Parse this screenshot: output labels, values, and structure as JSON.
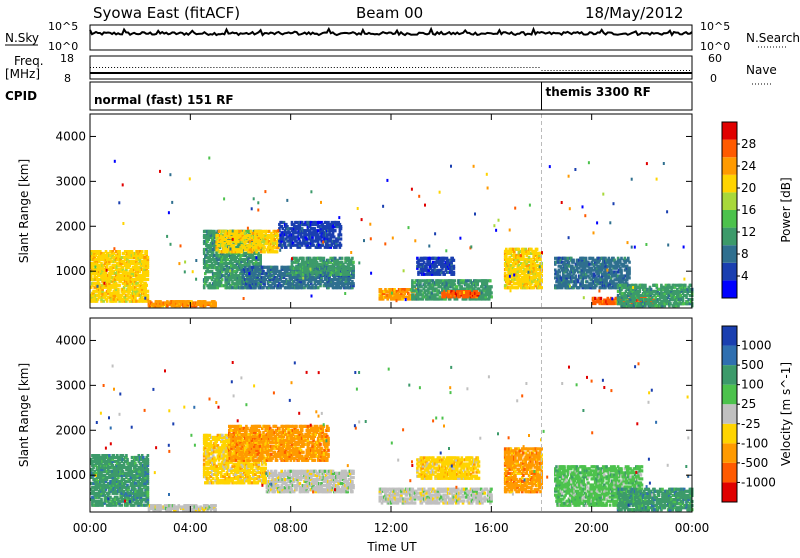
{
  "header": {
    "title": "Syowa East (fitACF)",
    "beam": "Beam 00",
    "date": "18/May/2012"
  },
  "noise_panel": {
    "left_label": "N.Sky",
    "right_label": "N.Search",
    "tick_top": "10^5",
    "tick_bottom": "10^0"
  },
  "freq_panel": {
    "left_label_line1": "Freq.",
    "left_label_line2": "[MHz]",
    "left_tick_top": "18",
    "left_tick_bottom": "8",
    "right_label": "Nave",
    "right_tick_top": "60",
    "right_tick_bottom": "0"
  },
  "cpid_panel": {
    "label": "CPID",
    "mode1": "normal (fast) 151 RF",
    "mode2": "themis 3300 RF",
    "mode2_start_hour": 18.0
  },
  "chart_data": [
    {
      "type": "heatmap",
      "name": "power-panel",
      "ylabel": "Slant Range [km]",
      "xlabel": "",
      "xlim": [
        0,
        24
      ],
      "ylim": [
        180,
        4500
      ],
      "yticks": [
        1000,
        2000,
        3000,
        4000
      ],
      "colorbar": {
        "label": "Power [dB]",
        "ticks": [
          4,
          8,
          12,
          16,
          20,
          24,
          28
        ],
        "range": [
          0,
          32
        ],
        "colors": [
          "#0000ff",
          "#1a3fb0",
          "#2f6f8f",
          "#3c9a6a",
          "#4cc24c",
          "#a8d83a",
          "#ffd400",
          "#ff9a00",
          "#ff5a00",
          "#e00000"
        ]
      },
      "echo_regions": [
        {
          "t": [
            0.0,
            2.3
          ],
          "r": [
            300,
            1450
          ],
          "value": 20
        },
        {
          "t": [
            2.3,
            5.0
          ],
          "r": [
            200,
            320
          ],
          "value": 24
        },
        {
          "t": [
            4.5,
            6.8
          ],
          "r": [
            600,
            1900
          ],
          "value": 12
        },
        {
          "t": [
            5.0,
            7.5
          ],
          "r": [
            1400,
            1900
          ],
          "value": 20
        },
        {
          "t": [
            6.0,
            10.5
          ],
          "r": [
            600,
            1100
          ],
          "value": 8
        },
        {
          "t": [
            7.5,
            10.0
          ],
          "r": [
            1500,
            2100
          ],
          "value": 6
        },
        {
          "t": [
            8.0,
            10.5
          ],
          "r": [
            900,
            1300
          ],
          "value": 10
        },
        {
          "t": [
            11.5,
            13.0
          ],
          "r": [
            350,
            600
          ],
          "value": 24
        },
        {
          "t": [
            12.8,
            16.0
          ],
          "r": [
            350,
            800
          ],
          "value": 12
        },
        {
          "t": [
            14.0,
            15.5
          ],
          "r": [
            400,
            550
          ],
          "value": 26
        },
        {
          "t": [
            13.0,
            14.5
          ],
          "r": [
            900,
            1300
          ],
          "value": 6
        },
        {
          "t": [
            16.5,
            18.0
          ],
          "r": [
            600,
            1500
          ],
          "value": 22
        },
        {
          "t": [
            18.5,
            21.5
          ],
          "r": [
            600,
            1300
          ],
          "value": 8
        },
        {
          "t": [
            20.0,
            22.5
          ],
          "r": [
            250,
            400
          ],
          "value": 26
        },
        {
          "t": [
            21.0,
            24.0
          ],
          "r": [
            200,
            700
          ],
          "value": 10
        }
      ]
    },
    {
      "type": "heatmap",
      "name": "velocity-panel",
      "ylabel": "Slant Range [km]",
      "xlabel": "Time UT",
      "xlim": [
        0,
        24
      ],
      "ylim": [
        180,
        4500
      ],
      "yticks": [
        1000,
        2000,
        3000,
        4000
      ],
      "xticks": [
        "00:00",
        "04:00",
        "08:00",
        "12:00",
        "16:00",
        "20:00",
        "00:00"
      ],
      "colorbar": {
        "label": "Velocity [m s^-1]",
        "ticks": [
          "1000",
          "500",
          "100",
          "25",
          "-25",
          "-100",
          "-500",
          "-1000"
        ],
        "colors": [
          "#1a3fb0",
          "#2f6fb0",
          "#3c9a6a",
          "#4cc24c",
          "#c0c0c0",
          "#ffd400",
          "#ff9a00",
          "#ff5a00",
          "#e00000"
        ]
      },
      "echo_regions": [
        {
          "t": [
            0.0,
            2.3
          ],
          "r": [
            300,
            1450
          ],
          "v": 100
        },
        {
          "t": [
            2.3,
            5.0
          ],
          "r": [
            200,
            320
          ],
          "v": 0
        },
        {
          "t": [
            4.5,
            7.0
          ],
          "r": [
            800,
            1900
          ],
          "v": -100
        },
        {
          "t": [
            7.0,
            10.5
          ],
          "r": [
            600,
            1100
          ],
          "v": 0
        },
        {
          "t": [
            5.5,
            9.5
          ],
          "r": [
            1300,
            2100
          ],
          "v": -500
        },
        {
          "t": [
            11.5,
            16.0
          ],
          "r": [
            350,
            700
          ],
          "v": -25
        },
        {
          "t": [
            13.0,
            15.5
          ],
          "r": [
            900,
            1400
          ],
          "v": -100
        },
        {
          "t": [
            16.5,
            18.0
          ],
          "r": [
            600,
            1600
          ],
          "v": -500
        },
        {
          "t": [
            18.5,
            22.0
          ],
          "r": [
            300,
            1200
          ],
          "v": 25
        },
        {
          "t": [
            21.0,
            24.0
          ],
          "r": [
            200,
            700
          ],
          "v": 100
        }
      ]
    }
  ]
}
